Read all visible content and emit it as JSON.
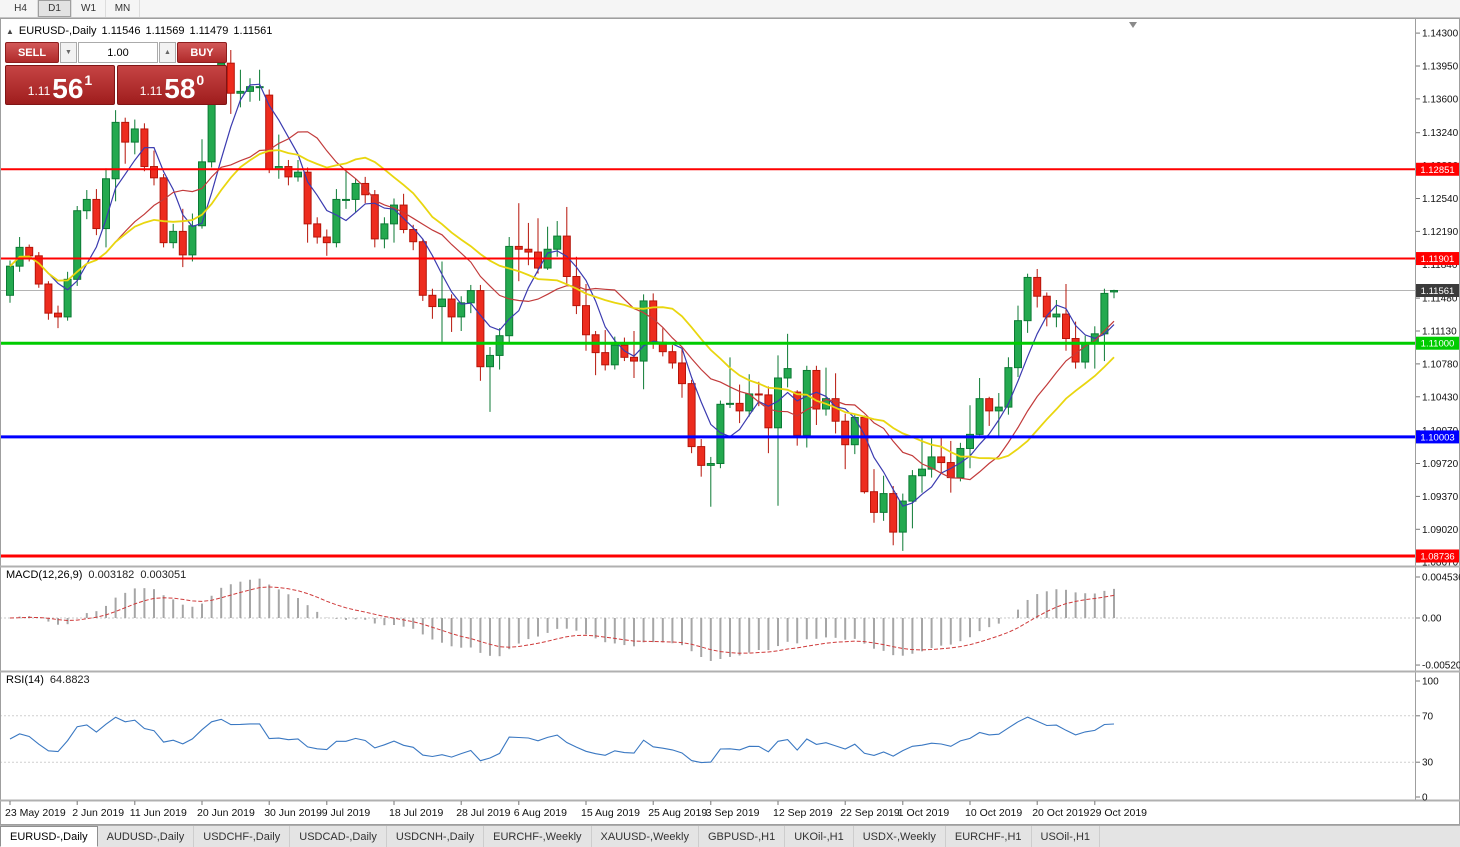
{
  "toolbar": {
    "timeframes": [
      {
        "label": "H4",
        "active": false
      },
      {
        "label": "D1",
        "active": true
      },
      {
        "label": "W1",
        "active": false
      },
      {
        "label": "MN",
        "active": false
      }
    ]
  },
  "chart": {
    "symbol_title": "EURUSD-,Daily",
    "open": "1.11546",
    "high": "1.11569",
    "low": "1.11479",
    "close": "1.11561"
  },
  "trade_panel": {
    "sell_label": "SELL",
    "buy_label": "BUY",
    "volume": "1.00",
    "sell_price": {
      "prefix": "1.11",
      "big": "56",
      "sup": "1"
    },
    "buy_price": {
      "prefix": "1.11",
      "big": "58",
      "sup": "0"
    }
  },
  "indicators": {
    "macd": {
      "label": "MACD(12,26,9)",
      "value_main": "0.003182",
      "value_signal": "0.003051"
    },
    "rsi": {
      "label": "RSI(14)",
      "value": "64.8823"
    }
  },
  "tabs": [
    {
      "label": "EURUSD-,Daily",
      "active": true
    },
    {
      "label": "AUDUSD-,Daily",
      "active": false
    },
    {
      "label": "USDCHF-,Daily",
      "active": false
    },
    {
      "label": "USDCAD-,Daily",
      "active": false
    },
    {
      "label": "USDCNH-,Daily",
      "active": false
    },
    {
      "label": "EURCHF-,Weekly",
      "active": false
    },
    {
      "label": "XAUUSD-,Weekly",
      "active": false
    },
    {
      "label": "GBPUSD-,H1",
      "active": false
    },
    {
      "label": "UKOil-,H1",
      "active": false
    },
    {
      "label": "USDX-,Weekly",
      "active": false
    },
    {
      "label": "EURCHF-,H1",
      "active": false
    },
    {
      "label": "USOil-,H1",
      "active": false
    }
  ],
  "chart_data": {
    "type": "candlestick",
    "symbol": "EURUSD-",
    "timeframe": "Daily",
    "last_ohlc": {
      "open": 1.11546,
      "high": 1.11569,
      "low": 1.11479,
      "close": 1.11561
    },
    "price_axis": {
      "min": 1.0864,
      "max": 1.1445,
      "ticks": [
        1.143,
        1.1395,
        1.136,
        1.1324,
        1.1289,
        1.1254,
        1.1219,
        1.1184,
        1.1148,
        1.1113,
        1.1078,
        1.1043,
        1.1007,
        1.0972,
        1.0937,
        1.0902,
        1.0867
      ]
    },
    "candle_colors": {
      "up_fill": "#23a94f",
      "up_edge": "#0c7a34",
      "down_fill": "#ed2c1e",
      "down_edge": "#b61409"
    },
    "candles": [
      [
        1.1151,
        1.1188,
        1.1143,
        1.1182
      ],
      [
        1.1182,
        1.1213,
        1.1176,
        1.1202
      ],
      [
        1.1202,
        1.1205,
        1.1187,
        1.1193
      ],
      [
        1.1193,
        1.1197,
        1.1159,
        1.1163
      ],
      [
        1.1163,
        1.1166,
        1.1125,
        1.1132
      ],
      [
        1.1132,
        1.114,
        1.1116,
        1.1128
      ],
      [
        1.1128,
        1.1176,
        1.1124,
        1.1168
      ],
      [
        1.1168,
        1.1246,
        1.1161,
        1.1241
      ],
      [
        1.1241,
        1.1263,
        1.1232,
        1.1253
      ],
      [
        1.1253,
        1.1264,
        1.1215,
        1.1222
      ],
      [
        1.1222,
        1.1286,
        1.1202,
        1.1275
      ],
      [
        1.1275,
        1.1348,
        1.1251,
        1.1335
      ],
      [
        1.1335,
        1.134,
        1.1291,
        1.1314
      ],
      [
        1.1314,
        1.1338,
        1.1301,
        1.1328
      ],
      [
        1.1328,
        1.1334,
        1.1283,
        1.1288
      ],
      [
        1.1288,
        1.1305,
        1.1268,
        1.1276
      ],
      [
        1.1276,
        1.128,
        1.1202,
        1.1207
      ],
      [
        1.1207,
        1.1227,
        1.1201,
        1.1219
      ],
      [
        1.1219,
        1.1243,
        1.1181,
        1.1194
      ],
      [
        1.1194,
        1.1238,
        1.1187,
        1.1225
      ],
      [
        1.1225,
        1.1317,
        1.1222,
        1.1293
      ],
      [
        1.1293,
        1.1378,
        1.1287,
        1.1369
      ],
      [
        1.1369,
        1.1406,
        1.1362,
        1.1398
      ],
      [
        1.1398,
        1.1412,
        1.1344,
        1.1366
      ],
      [
        1.1366,
        1.1391,
        1.1351,
        1.1368
      ],
      [
        1.1368,
        1.1382,
        1.1357,
        1.1373
      ],
      [
        1.1373,
        1.1391,
        1.1358,
        1.1373
      ],
      [
        1.1364,
        1.137,
        1.1281,
        1.1285
      ],
      [
        1.1285,
        1.1322,
        1.1275,
        1.1288
      ],
      [
        1.1288,
        1.1295,
        1.1268,
        1.1277
      ],
      [
        1.1277,
        1.1295,
        1.1272,
        1.1282
      ],
      [
        1.1282,
        1.1287,
        1.1207,
        1.1227
      ],
      [
        1.1227,
        1.1234,
        1.1206,
        1.1213
      ],
      [
        1.1213,
        1.1221,
        1.1193,
        1.1207
      ],
      [
        1.1207,
        1.1264,
        1.1202,
        1.1253
      ],
      [
        1.1253,
        1.1285,
        1.1243,
        1.1253
      ],
      [
        1.1253,
        1.1275,
        1.1239,
        1.127
      ],
      [
        1.127,
        1.1277,
        1.1249,
        1.1258
      ],
      [
        1.1258,
        1.1263,
        1.1202,
        1.1211
      ],
      [
        1.1211,
        1.1234,
        1.1201,
        1.1227
      ],
      [
        1.1227,
        1.1254,
        1.1207,
        1.1247
      ],
      [
        1.1247,
        1.1259,
        1.1217,
        1.1221
      ],
      [
        1.1221,
        1.1226,
        1.1199,
        1.1208
      ],
      [
        1.1208,
        1.1211,
        1.1145,
        1.1151
      ],
      [
        1.1151,
        1.1158,
        1.1126,
        1.1139
      ],
      [
        1.1139,
        1.1187,
        1.1101,
        1.1147
      ],
      [
        1.1147,
        1.1152,
        1.1112,
        1.1128
      ],
      [
        1.1128,
        1.115,
        1.1113,
        1.1143
      ],
      [
        1.1143,
        1.1162,
        1.1132,
        1.1156
      ],
      [
        1.1156,
        1.1162,
        1.106,
        1.1075
      ],
      [
        1.1075,
        1.1096,
        1.1027,
        1.1087
      ],
      [
        1.1087,
        1.1116,
        1.1072,
        1.1108
      ],
      [
        1.1108,
        1.1213,
        1.1101,
        1.1203
      ],
      [
        1.1203,
        1.1249,
        1.1166,
        1.12
      ],
      [
        1.12,
        1.1228,
        1.1183,
        1.1197
      ],
      [
        1.1197,
        1.1233,
        1.1174,
        1.118
      ],
      [
        1.118,
        1.1224,
        1.1178,
        1.12
      ],
      [
        1.12,
        1.123,
        1.1192,
        1.1214
      ],
      [
        1.1214,
        1.1245,
        1.1163,
        1.1171
      ],
      [
        1.1171,
        1.1192,
        1.1131,
        1.114
      ],
      [
        1.114,
        1.1163,
        1.1092,
        1.1109
      ],
      [
        1.1109,
        1.1113,
        1.1066,
        1.109
      ],
      [
        1.109,
        1.1114,
        1.1071,
        1.1077
      ],
      [
        1.1077,
        1.1107,
        1.1072,
        1.1098
      ],
      [
        1.1098,
        1.1106,
        1.1081,
        1.1085
      ],
      [
        1.1085,
        1.1113,
        1.1063,
        1.1081
      ],
      [
        1.1081,
        1.1152,
        1.1051,
        1.1145
      ],
      [
        1.1145,
        1.1153,
        1.1094,
        1.1101
      ],
      [
        1.1101,
        1.1116,
        1.1086,
        1.1091
      ],
      [
        1.1091,
        1.1098,
        1.1073,
        1.1079
      ],
      [
        1.1079,
        1.1094,
        1.1042,
        1.1057
      ],
      [
        1.1057,
        1.1061,
        1.0983,
        1.099
      ],
      [
        1.099,
        1.0998,
        1.0958,
        1.097
      ],
      [
        1.097,
        1.0979,
        1.0926,
        1.0972
      ],
      [
        1.0972,
        1.1039,
        1.0967,
        1.1035
      ],
      [
        1.1035,
        1.1085,
        1.1031,
        1.1036
      ],
      [
        1.1036,
        1.1056,
        1.1015,
        1.1028
      ],
      [
        1.1028,
        1.1067,
        1.1022,
        1.1046
      ],
      [
        1.1046,
        1.1059,
        1.1033,
        1.1045
      ],
      [
        1.1045,
        1.1054,
        1.0983,
        1.101
      ],
      [
        1.101,
        1.1087,
        1.0927,
        1.1063
      ],
      [
        1.1063,
        1.111,
        1.1053,
        1.1073
      ],
      [
        1.1048,
        1.105,
        1.0991,
        1.1002
      ],
      [
        1.1002,
        1.1076,
        1.0989,
        1.1071
      ],
      [
        1.1071,
        1.1076,
        1.1013,
        1.103
      ],
      [
        1.103,
        1.1074,
        1.1023,
        1.1041
      ],
      [
        1.1041,
        1.1068,
        1.1004,
        1.1017
      ],
      [
        1.1017,
        1.1025,
        1.0966,
        1.0992
      ],
      [
        1.0992,
        1.1024,
        1.0982,
        1.1021
      ],
      [
        1.1021,
        1.1023,
        1.094,
        1.0942
      ],
      [
        1.0942,
        1.0966,
        1.0909,
        1.092
      ],
      [
        1.092,
        1.0959,
        1.0911,
        1.094
      ],
      [
        1.094,
        1.0948,
        1.0885,
        1.0899
      ],
      [
        1.0899,
        1.094,
        1.0879,
        1.0932
      ],
      [
        1.0932,
        1.0965,
        1.0903,
        1.0959
      ],
      [
        1.0959,
        1.0999,
        1.0941,
        1.0966
      ],
      [
        1.0966,
        1.0999,
        1.0957,
        1.0979
      ],
      [
        1.0979,
        1.1,
        1.0962,
        1.0973
      ],
      [
        1.0973,
        1.0996,
        1.0941,
        1.0957
      ],
      [
        1.0957,
        1.0994,
        1.0953,
        1.0988
      ],
      [
        1.0988,
        1.1034,
        1.0967,
        1.1003
      ],
      [
        1.1003,
        1.1063,
        1.1002,
        1.1041
      ],
      [
        1.1041,
        1.1043,
        1.1012,
        1.1028
      ],
      [
        1.1028,
        1.1047,
        1.1001,
        1.1032
      ],
      [
        1.1032,
        1.1085,
        1.1024,
        1.1074
      ],
      [
        1.1074,
        1.114,
        1.1064,
        1.1124
      ],
      [
        1.1124,
        1.1174,
        1.1111,
        1.117
      ],
      [
        1.117,
        1.1179,
        1.1138,
        1.115
      ],
      [
        1.115,
        1.1154,
        1.1118,
        1.1128
      ],
      [
        1.1128,
        1.1146,
        1.1117,
        1.1131
      ],
      [
        1.1131,
        1.1163,
        1.1092,
        1.1105
      ],
      [
        1.1105,
        1.1123,
        1.1073,
        1.108
      ],
      [
        1.108,
        1.1108,
        1.1073,
        1.11
      ],
      [
        1.11,
        1.1118,
        1.1073,
        1.111
      ],
      [
        1.111,
        1.1158,
        1.1081,
        1.1153
      ],
      [
        1.11546,
        1.11569,
        1.11479,
        1.11561
      ]
    ],
    "date_labels": [
      {
        "index": 0,
        "label": "23 May 2019"
      },
      {
        "index": 7,
        "label": "2 Jun 2019"
      },
      {
        "index": 13,
        "label": "11 Jun 2019"
      },
      {
        "index": 20,
        "label": "20 Jun 2019"
      },
      {
        "index": 27,
        "label": "30 Jun 2019"
      },
      {
        "index": 33,
        "label": "9 Jul 2019"
      },
      {
        "index": 40,
        "label": "18 Jul 2019"
      },
      {
        "index": 47,
        "label": "28 Jul 2019"
      },
      {
        "index": 53,
        "label": "6 Aug 2019"
      },
      {
        "index": 60,
        "label": "15 Aug 2019"
      },
      {
        "index": 67,
        "label": "25 Aug 2019"
      },
      {
        "index": 73,
        "label": "3 Sep 2019"
      },
      {
        "index": 80,
        "label": "12 Sep 2019"
      },
      {
        "index": 87,
        "label": "22 Sep 2019"
      },
      {
        "index": 93,
        "label": "1 Oct 2019"
      },
      {
        "index": 100,
        "label": "10 Oct 2019"
      },
      {
        "index": 107,
        "label": "20 Oct 2019"
      },
      {
        "index": 113,
        "label": "29 Oct 2019"
      }
    ],
    "overlays": [
      {
        "name": "ma-fast-blue",
        "type": "sma",
        "period": 5,
        "color": "#3b3bb0",
        "width": 1.2
      },
      {
        "name": "ma-mid-red",
        "type": "sma",
        "period": 12,
        "color": "#c23b3b",
        "width": 1.2
      },
      {
        "name": "ma-slow-yellow",
        "type": "sma",
        "period": 18,
        "color": "#e9d60f",
        "width": 1.8
      }
    ],
    "levels": [
      {
        "price": 1.12851,
        "color": "#ff0000",
        "width": 2
      },
      {
        "price": 1.11901,
        "color": "#ff0000",
        "width": 2
      },
      {
        "price": 1.11,
        "color": "#00cc00",
        "width": 3
      },
      {
        "price": 1.10003,
        "color": "#0000ff",
        "width": 3
      },
      {
        "price": 1.08736,
        "color": "#ff0000",
        "width": 3
      }
    ],
    "bid": {
      "price": 1.11561,
      "badge_color": "#3b3b3b",
      "line_color": "#b4b4b4"
    },
    "macd": {
      "fast": 12,
      "slow": 26,
      "signal": 9,
      "range": {
        "min": -0.005205,
        "max": 0.004536
      },
      "axis_ticks": [
        {
          "v": 0.004536,
          "label": "0.004536"
        },
        {
          "v": 0,
          "label": "0.00"
        },
        {
          "v": -0.005205,
          "label": "-0.005205"
        }
      ],
      "histogram_color": "#a6a6a6",
      "signal_color": "#cf3b3b"
    },
    "rsi": {
      "period": 14,
      "axis_ticks": [
        {
          "v": 100,
          "label": "100"
        },
        {
          "v": 70,
          "label": "70"
        },
        {
          "v": 30,
          "label": "30"
        },
        {
          "v": 0,
          "label": "0"
        }
      ],
      "guide_levels": [
        70,
        30
      ],
      "line_color": "#3a78c2"
    }
  }
}
